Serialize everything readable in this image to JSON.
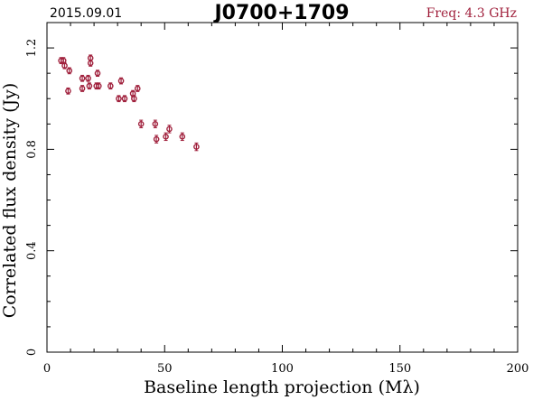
{
  "header": {
    "date": "2015.09.01",
    "source": "J0700+1709",
    "freq_label": "Freq: 4.3 GHz"
  },
  "chart_data": {
    "type": "scatter",
    "title": "J0700+1709",
    "xlabel": "Baseline length projection (Mλ)",
    "ylabel": "Correlated flux density (Jy)",
    "xlim": [
      0,
      200
    ],
    "ylim": [
      0,
      1.3
    ],
    "xticks": [
      0,
      50,
      100,
      150,
      200
    ],
    "xtick_labels": [
      "0",
      "50",
      "100",
      "150",
      "200"
    ],
    "yticks": [
      0,
      0.4,
      0.8,
      1.2
    ],
    "ytick_labels": [
      "0",
      "0.4",
      "0.8",
      "1.2"
    ],
    "grid": false,
    "marker_color": "#a0203c",
    "series": [
      {
        "points": [
          {
            "x": 6.0,
            "y": 1.15,
            "err": 0.012
          },
          {
            "x": 7.0,
            "y": 1.15,
            "err": 0.012
          },
          {
            "x": 7.5,
            "y": 1.13,
            "err": 0.012
          },
          {
            "x": 9.5,
            "y": 1.11,
            "err": 0.012
          },
          {
            "x": 9.0,
            "y": 1.03,
            "err": 0.012
          },
          {
            "x": 15.0,
            "y": 1.08,
            "err": 0.012
          },
          {
            "x": 17.5,
            "y": 1.08,
            "err": 0.012
          },
          {
            "x": 18.5,
            "y": 1.14,
            "err": 0.012
          },
          {
            "x": 18.5,
            "y": 1.16,
            "err": 0.012
          },
          {
            "x": 15.0,
            "y": 1.04,
            "err": 0.012
          },
          {
            "x": 18.0,
            "y": 1.05,
            "err": 0.012
          },
          {
            "x": 21.0,
            "y": 1.05,
            "err": 0.012
          },
          {
            "x": 21.5,
            "y": 1.1,
            "err": 0.012
          },
          {
            "x": 22.0,
            "y": 1.05,
            "err": 0.012
          },
          {
            "x": 27.0,
            "y": 1.05,
            "err": 0.012
          },
          {
            "x": 30.5,
            "y": 1.0,
            "err": 0.012
          },
          {
            "x": 31.5,
            "y": 1.07,
            "err": 0.012
          },
          {
            "x": 33.0,
            "y": 1.0,
            "err": 0.012
          },
          {
            "x": 36.5,
            "y": 1.02,
            "err": 0.012
          },
          {
            "x": 37.0,
            "y": 1.0,
            "err": 0.012
          },
          {
            "x": 38.5,
            "y": 1.04,
            "err": 0.012
          },
          {
            "x": 40.0,
            "y": 0.9,
            "err": 0.015
          },
          {
            "x": 46.0,
            "y": 0.9,
            "err": 0.015
          },
          {
            "x": 46.5,
            "y": 0.84,
            "err": 0.015
          },
          {
            "x": 50.5,
            "y": 0.85,
            "err": 0.015
          },
          {
            "x": 52.0,
            "y": 0.88,
            "err": 0.015
          },
          {
            "x": 57.5,
            "y": 0.85,
            "err": 0.015
          },
          {
            "x": 63.5,
            "y": 0.81,
            "err": 0.015
          }
        ]
      }
    ]
  }
}
